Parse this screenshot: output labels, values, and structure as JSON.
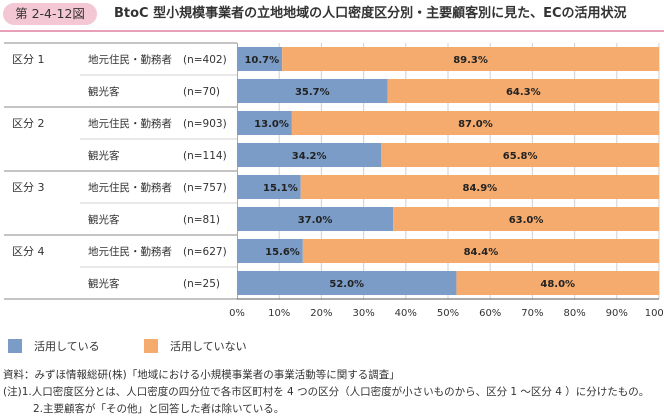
{
  "header": {
    "figure_label": "第 2-4-12図",
    "title": "BtoC 型小規模事業者の立地地域の人口密度区分別・主要顧客別に見た、ECの活用状況"
  },
  "legend": {
    "items": [
      {
        "label": "活用している",
        "color": "#7a9cc6"
      },
      {
        "label": "活用していない",
        "color": "#f5ab6e"
      }
    ]
  },
  "notes": {
    "source": "資料：みずほ情報総研(株)「地域における小規模事業者の事業活動等に関する調査」",
    "note1": "(注)1.人口密度区分とは、人口密度の四分位で各市区町村を 4 つの区分（人口密度が小さいものから、区分 1 〜区分 4 ）に分けたもの。",
    "note2": "2.主要顧客が「その他」と回答した者は除いている。"
  },
  "chart_data": {
    "type": "bar",
    "orientation": "horizontal",
    "stacked": true,
    "groups": [
      {
        "label": "区分 1",
        "rows": [
          {
            "category": "地元住民・勤務者",
            "n": "(n=402)",
            "values": [
              10.7,
              89.3
            ]
          },
          {
            "category": "観光客",
            "n": "(n=70)",
            "values": [
              35.7,
              64.3
            ]
          }
        ]
      },
      {
        "label": "区分 2",
        "rows": [
          {
            "category": "地元住民・勤務者",
            "n": "(n=903)",
            "values": [
              13.0,
              87.0
            ]
          },
          {
            "category": "観光客",
            "n": "(n=114)",
            "values": [
              34.2,
              65.8
            ]
          }
        ]
      },
      {
        "label": "区分 3",
        "rows": [
          {
            "category": "地元住民・勤務者",
            "n": "(n=757)",
            "values": [
              15.1,
              84.9
            ]
          },
          {
            "category": "観光客",
            "n": "(n=81)",
            "values": [
              37.0,
              63.0
            ]
          }
        ]
      },
      {
        "label": "区分 4",
        "rows": [
          {
            "category": "地元住民・勤務者",
            "n": "(n=627)",
            "values": [
              15.6,
              84.4
            ]
          },
          {
            "category": "観光客",
            "n": "(n=25)",
            "values": [
              52.0,
              48.0
            ]
          }
        ]
      }
    ],
    "series": [
      {
        "name": "活用している",
        "color": "#7a9cc6"
      },
      {
        "name": "活用していない",
        "color": "#f5ab6e"
      }
    ],
    "xlim": [
      0,
      100
    ],
    "xticks": [
      "0%",
      "10%",
      "20%",
      "30%",
      "40%",
      "50%",
      "60%",
      "70%",
      "80%",
      "90%",
      "100%"
    ],
    "grid": true,
    "legend_position": "bottom-left"
  }
}
